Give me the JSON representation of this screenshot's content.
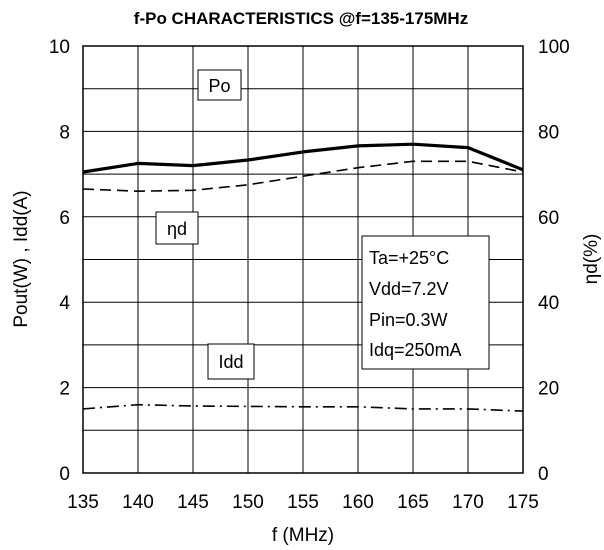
{
  "chart_data": {
    "type": "line",
    "title": "f-Po CHARACTERISTICS @f=135-175MHz",
    "xlabel": "f (MHz)",
    "ylabel_left": "Pout(W) , Idd(A)",
    "ylabel_right": "ηd(%)",
    "x": [
      135,
      140,
      145,
      150,
      155,
      160,
      165,
      170,
      175
    ],
    "xlim": [
      135,
      175
    ],
    "ylim_left": [
      0,
      10
    ],
    "ylim_right": [
      0,
      100
    ],
    "x_ticks": [
      135,
      140,
      145,
      150,
      155,
      160,
      165,
      170,
      175
    ],
    "y_ticks_left": [
      0,
      2,
      4,
      6,
      8,
      10
    ],
    "y_ticks_right": [
      0,
      20,
      40,
      60,
      80,
      100
    ],
    "grid": true,
    "series": [
      {
        "name": "Po",
        "axis": "left",
        "style": "solid-bold",
        "values": [
          7.05,
          7.25,
          7.2,
          7.33,
          7.52,
          7.66,
          7.7,
          7.62,
          7.1
        ]
      },
      {
        "name": "ηd",
        "axis": "right",
        "style": "dashed",
        "values": [
          66.5,
          66,
          66.2,
          67.5,
          69.5,
          71.5,
          73,
          73,
          70.5
        ]
      },
      {
        "name": "Idd",
        "axis": "left",
        "style": "dash-dot",
        "values": [
          1.5,
          1.6,
          1.57,
          1.56,
          1.55,
          1.55,
          1.5,
          1.5,
          1.45
        ]
      }
    ],
    "annotations": {
      "po_label": "Po",
      "eta_label": "ηd",
      "idd_label": "Idd",
      "conditions": [
        "Ta=+25°C",
        "Vdd=7.2V",
        "Pin=0.3W",
        "Idq=250mA"
      ]
    }
  }
}
